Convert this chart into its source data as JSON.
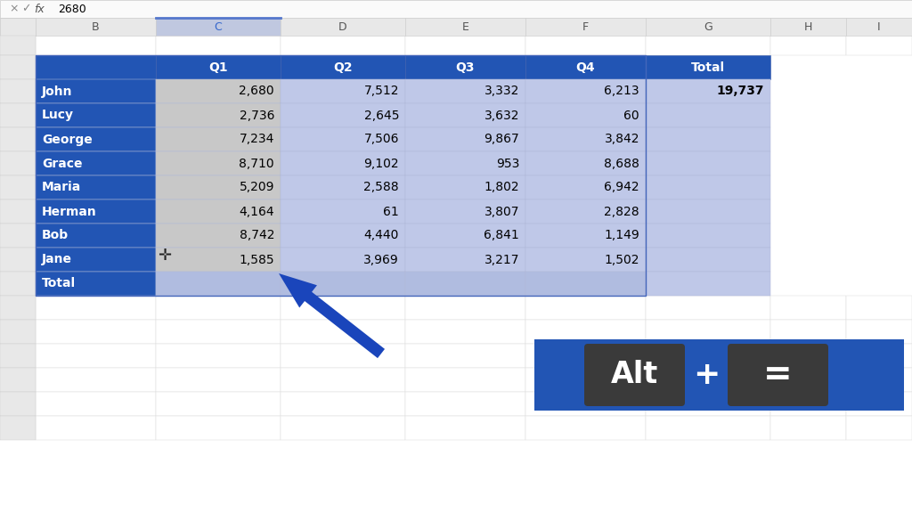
{
  "table_headers": [
    "",
    "Q1",
    "Q2",
    "Q3",
    "Q4",
    "Total"
  ],
  "data": [
    [
      "John",
      "2,680",
      "7,512",
      "3,332",
      "6,213",
      "19,737"
    ],
    [
      "Lucy",
      "2,736",
      "2,645",
      "3,632",
      "60",
      ""
    ],
    [
      "George",
      "7,234",
      "7,506",
      "9,867",
      "3,842",
      ""
    ],
    [
      "Grace",
      "8,710",
      "9,102",
      "953",
      "8,688",
      ""
    ],
    [
      "Maria",
      "5,209",
      "2,588",
      "1,802",
      "6,942",
      ""
    ],
    [
      "Herman",
      "4,164",
      "61",
      "3,807",
      "2,828",
      ""
    ],
    [
      "Bob",
      "8,742",
      "4,440",
      "6,841",
      "1,149",
      ""
    ],
    [
      "Jane",
      "1,585",
      "3,969",
      "3,217",
      "1,502",
      ""
    ],
    [
      "Total",
      "",
      "",
      "",
      "",
      ""
    ]
  ],
  "col_headers": [
    "B",
    "C",
    "D",
    "E",
    "F",
    "G",
    "H",
    "I"
  ],
  "header_bg": "#2255B4",
  "header_text": "#FFFFFF",
  "name_col_bg": "#2255B4",
  "name_col_text": "#FFFFFF",
  "q1_col_bg": "#C8C8C8",
  "data_bg": "#BFC8E8",
  "total_col_bg": "#BFC8E8",
  "total_row_bg": "#B0BCE0",
  "outer_bg": "#F2F2F2",
  "grid_color": "#B0B8D8",
  "arrow_color": "#1A45BB",
  "shortcut_bg": "#2255B4",
  "key_bg": "#3A3A3A",
  "key_text": "#FFFFFF",
  "plus_text": "#FFFFFF",
  "col_header_sel_bg": "#C0C8E0",
  "col_header_bg": "#E8E8E8",
  "col_header_text_sel": "#3366CC",
  "formula_bar_bg": "#FAFAFA",
  "title_bar_bg": "#F0F0F0"
}
